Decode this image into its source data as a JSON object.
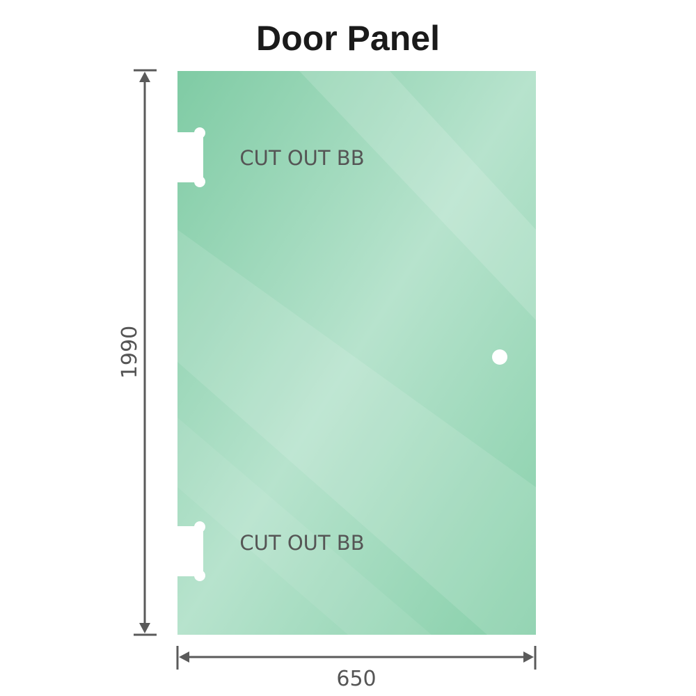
{
  "title": "Door Panel",
  "dimensions": {
    "height": "1990",
    "width": "650"
  },
  "cutouts": [
    {
      "label": "CUT OUT BB"
    },
    {
      "label": "CUT OUT BB"
    }
  ],
  "colors": {
    "glass": "#8fd3b0",
    "glass_dark": "#7fcba4",
    "glass_light": "#bde6d2",
    "dimension_line": "#5a5a5a",
    "label_text": "#555555"
  }
}
